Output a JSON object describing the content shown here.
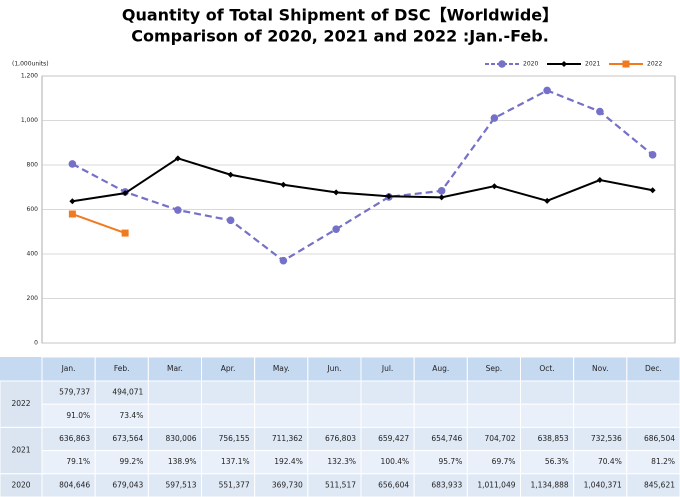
{
  "chart_data": {
    "type": "line",
    "title": "Quantity of Total Shipment of DSC【Worldwide】",
    "subtitle": "Comparison of 2020, 2021 and 2022 :Jan.-Feb.",
    "ylabel": "(1,000units)",
    "categories": [
      "Jan.",
      "Feb.",
      "Mar.",
      "Apr.",
      "May.",
      "Jun.",
      "Jul.",
      "Aug.",
      "Sep.",
      "Oct.",
      "Nov.",
      "Dec."
    ],
    "series": [
      {
        "name": "2020",
        "color": "#7570c8",
        "dash": true,
        "marker": "circle",
        "values": [
          804.646,
          679.043,
          597.513,
          551.377,
          369.73,
          511.517,
          656.604,
          683.933,
          1011.049,
          1134.888,
          1040.371,
          845.621
        ]
      },
      {
        "name": "2021",
        "color": "#000000",
        "dash": false,
        "marker": "diamond",
        "values": [
          636.863,
          673.564,
          830.006,
          756.155,
          711.362,
          676.803,
          659.427,
          654.746,
          704.702,
          638.853,
          732.536,
          686.504
        ]
      },
      {
        "name": "2022",
        "color": "#f07a20",
        "dash": false,
        "marker": "square",
        "values": [
          579.737,
          494.071,
          null,
          null,
          null,
          null,
          null,
          null,
          null,
          null,
          null,
          null
        ]
      }
    ],
    "ylim": [
      0,
      1200
    ],
    "yticks": [
      0,
      200,
      400,
      600,
      800,
      {
        "value": 1000,
        "label": "1,000"
      },
      {
        "value": 1200,
        "label": "1,200"
      }
    ],
    "grid": true,
    "legend": "top-right"
  },
  "table": {
    "rows": [
      {
        "units": [
          "579,737",
          "494,071",
          null,
          null,
          null,
          null,
          null,
          null,
          null,
          null,
          null,
          null
        ],
        "ratios": [
          "91.0%",
          "73.4%",
          null,
          null,
          null,
          null,
          null,
          null,
          null,
          null,
          null,
          null
        ]
      },
      {
        "units": [
          "636,863",
          "673,564",
          "830,006",
          "756,155",
          "711,362",
          "676,803",
          "659,427",
          "654,746",
          "704,702",
          "638,853",
          "732,536",
          "686,504"
        ],
        "ratios": [
          "79.1%",
          "99.2%",
          "138.9%",
          "137.1%",
          "192.4%",
          "132.3%",
          "100.4%",
          "95.7%",
          "69.7%",
          "56.3%",
          "70.4%",
          "81.2%"
        ]
      },
      {
        "units": [
          "804,646",
          "679,043",
          "597,513",
          "551,377",
          "369,730",
          "511,517",
          "656,604",
          "683,933",
          "1,011,049",
          "1,134,888",
          "1,040,371",
          "845,621"
        ]
      }
    ]
  }
}
